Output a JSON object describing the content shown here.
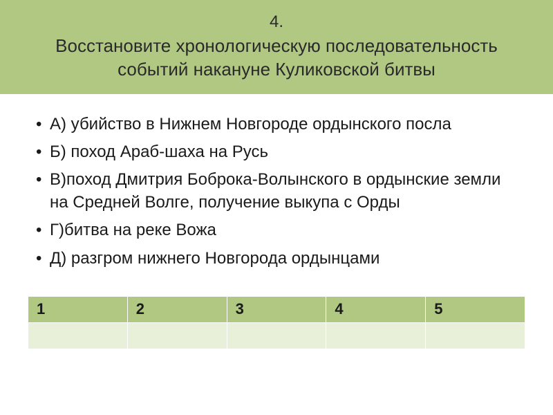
{
  "header": {
    "number": "4.",
    "text_line1": "Восстановите  хронологическую последовательность",
    "text_line2": "событий накануне Куликовской битвы"
  },
  "options": {
    "a": "А) убийство в Нижнем Новгороде ордынского посла",
    "b": "Б) поход Араб-шаха на Русь",
    "c": "В)поход Дмитрия Боброка-Волынского в ордынские земли на Средней Волге, получение выкупа с Орды",
    "d": "Г)битва на реке Вожа",
    "e": "Д) разгром нижнего Новгорода ордынцами"
  },
  "table": {
    "headers": [
      "1",
      "2",
      "3",
      "4",
      "5"
    ],
    "answers": [
      "",
      "",
      "",
      "",
      ""
    ]
  },
  "colors": {
    "header_bg": "#b0c882",
    "row_empty_bg": "#e9f0d9",
    "text_dark": "#1a1a1a",
    "header_text": "#2a2a2a",
    "border": "#ffffff",
    "page_bg": "#ffffff"
  },
  "typography": {
    "header_number_fontsize": 24,
    "header_text_fontsize": 26,
    "option_fontsize": 24,
    "table_header_fontsize": 22
  }
}
